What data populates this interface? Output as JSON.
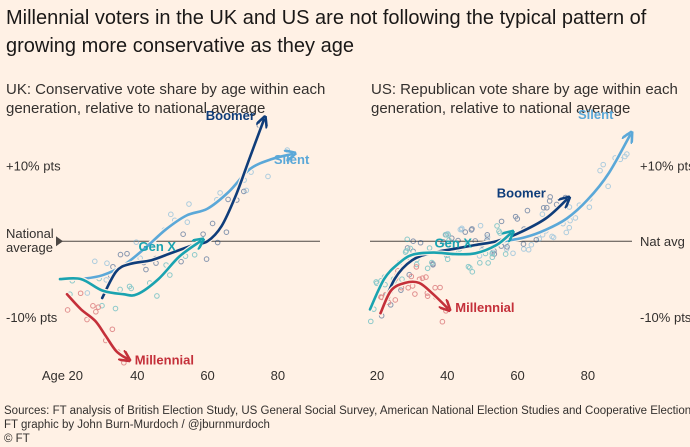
{
  "title": "Millennial voters in the UK and US are not following the typical pattern of growing more conservative as they age",
  "footer": {
    "sources": "Sources: FT analysis of British Election Study, US General Social Survey, American National Election Studies and Cooperative Election Study",
    "credit": "FT graphic by John Burn-Murdoch / @jburnmurdoch",
    "copyright": "© FT"
  },
  "colors": {
    "background": "#fff1e5",
    "boomer": "#0f3d7a",
    "silent": "#5ba8d8",
    "genx": "#1aa3b0",
    "millennial": "#c4303a",
    "reference_line": "#4d4845"
  },
  "chart_data": [
    {
      "type": "line",
      "subtitle": "UK: Conservative vote share by age within each generation, relative to national average",
      "xlabel": "",
      "ylabel": "",
      "xlim": [
        18,
        92
      ],
      "ylim": [
        -17,
        16
      ],
      "x_ticks": [
        20,
        40,
        60,
        80
      ],
      "x_tick_labels": [
        "Age 20",
        "40",
        "60",
        "80"
      ],
      "y_ticks": [
        10,
        0,
        -10
      ],
      "y_tick_labels": [
        "+10% pts",
        "National average",
        "-10% pts"
      ],
      "grid": false,
      "legend": "inline labels",
      "series": [
        {
          "name": "Silent",
          "color": "#5ba8d8",
          "x": [
            24,
            30,
            36,
            42,
            48,
            54,
            60,
            66,
            72,
            78,
            84
          ],
          "y": [
            -5,
            -4.5,
            -3.2,
            -1,
            1.5,
            3.4,
            4.3,
            6.5,
            9.5,
            10.8,
            11.5
          ]
        },
        {
          "name": "Boomer",
          "color": "#0f3d7a",
          "x": [
            30,
            34,
            38,
            44,
            50,
            56,
            60,
            64,
            68,
            72,
            76
          ],
          "y": [
            -7.5,
            -4,
            -3,
            -2.5,
            -1.5,
            -0.5,
            0,
            2,
            6,
            11,
            16
          ]
        },
        {
          "name": "Gen X",
          "color": "#1aa3b0",
          "x": [
            18,
            24,
            30,
            36,
            40,
            46,
            52,
            58
          ],
          "y": [
            -5,
            -5,
            -6.5,
            -7,
            -7,
            -5,
            -2,
            0
          ]
        },
        {
          "name": "Millennial",
          "color": "#c4303a",
          "x": [
            20,
            24,
            28,
            31,
            34,
            37
          ],
          "y": [
            -7,
            -9,
            -10.5,
            -12.5,
            -14.5,
            -15.5
          ]
        }
      ]
    },
    {
      "type": "line",
      "subtitle": "US: Republican vote share by age within each generation, relative to national average",
      "xlabel": "",
      "ylabel": "",
      "xlim": [
        18,
        92
      ],
      "ylim": [
        -17,
        16
      ],
      "x_ticks": [
        20,
        40,
        60,
        80
      ],
      "x_tick_labels": [
        "20",
        "40",
        "60",
        "80"
      ],
      "y_ticks": [
        10,
        0,
        -10
      ],
      "y_tick_labels": [
        "+10% pts",
        "Nat avg",
        "-10% pts"
      ],
      "grid": false,
      "legend": "inline labels",
      "series": [
        {
          "name": "Silent",
          "color": "#5ba8d8",
          "x": [
            40,
            48,
            56,
            62,
            68,
            74,
            80,
            86,
            92
          ],
          "y": [
            -1,
            -0.5,
            0,
            0.5,
            1.5,
            3,
            5.5,
            9,
            14
          ]
        },
        {
          "name": "Boomer",
          "color": "#0f3d7a",
          "x": [
            21,
            25,
            30,
            36,
            42,
            48,
            54,
            60,
            68,
            74
          ],
          "y": [
            -9.5,
            -5,
            -2.5,
            -1.5,
            -1,
            -0.5,
            0,
            1,
            3,
            5.5
          ]
        },
        {
          "name": "Gen X",
          "color": "#1aa3b0",
          "x": [
            18,
            22,
            26,
            30,
            36,
            42,
            48,
            54,
            58
          ],
          "y": [
            -9,
            -5,
            -3,
            -1.8,
            -1.5,
            -1.7,
            -1.6,
            -0.5,
            1
          ]
        },
        {
          "name": "Millennial",
          "color": "#c4303a",
          "x": [
            21,
            24,
            28,
            32,
            36,
            40
          ],
          "y": [
            -9.5,
            -6.5,
            -5.5,
            -5.5,
            -7,
            -8.8
          ]
        }
      ]
    }
  ]
}
